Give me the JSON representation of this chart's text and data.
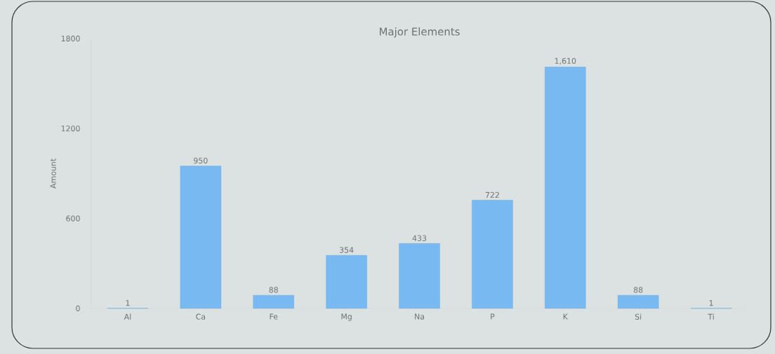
{
  "chart_data": {
    "type": "bar",
    "title": "Major Elements",
    "ylabel": "Amount",
    "categories": [
      "Al",
      "Ca",
      "Fe",
      "Mg",
      "Na",
      "P",
      "K",
      "Si",
      "Ti"
    ],
    "values": [
      1,
      950,
      88,
      354,
      433,
      722,
      1610,
      88,
      1
    ],
    "value_labels": [
      "1",
      "950",
      "88",
      "354",
      "433",
      "722",
      "1,610",
      "88",
      "1"
    ],
    "color": "#77b9f0",
    "ylim": [
      0,
      1800
    ],
    "yticks": [
      0,
      600,
      1200,
      1800
    ],
    "grid": false
  }
}
